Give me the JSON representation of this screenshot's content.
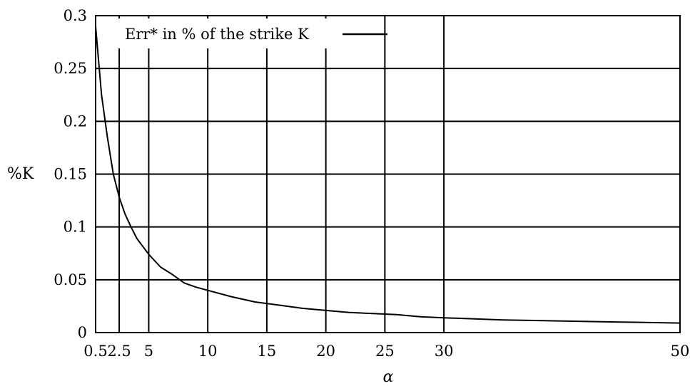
{
  "chart_data": {
    "type": "line",
    "xlabel": "α",
    "ylabel": "%K",
    "xlim": [
      0.5,
      50
    ],
    "ylim": [
      0,
      0.3
    ],
    "x_ticks": [
      {
        "value": 0.5,
        "label": "0.5"
      },
      {
        "value": 2.5,
        "label": "2.5"
      },
      {
        "value": 5,
        "label": "5"
      },
      {
        "value": 10,
        "label": "10"
      },
      {
        "value": 15,
        "label": "15"
      },
      {
        "value": 20,
        "label": "20"
      },
      {
        "value": 25,
        "label": "25"
      },
      {
        "value": 30,
        "label": "30"
      },
      {
        "value": 50,
        "label": "50"
      }
    ],
    "y_ticks": [
      {
        "value": 0,
        "label": "0"
      },
      {
        "value": 0.05,
        "label": "0.05"
      },
      {
        "value": 0.1,
        "label": "0.1"
      },
      {
        "value": 0.15,
        "label": "0.15"
      },
      {
        "value": 0.2,
        "label": "0.2"
      },
      {
        "value": 0.25,
        "label": "0.25"
      },
      {
        "value": 0.3,
        "label": "0.3"
      }
    ],
    "grid": true,
    "legend": "top-left",
    "series": [
      {
        "name": "Err* in % of the strike K",
        "color": "#000000",
        "x": [
          0.5,
          1,
          1.5,
          2,
          2.5,
          3,
          3.5,
          4,
          5,
          6,
          7,
          8,
          9,
          10,
          12,
          14,
          16,
          18,
          20,
          22,
          24,
          26,
          28,
          30,
          35,
          40,
          45,
          50
        ],
        "y": [
          0.29,
          0.225,
          0.185,
          0.15,
          0.128,
          0.112,
          0.1,
          0.089,
          0.074,
          0.062,
          0.055,
          0.047,
          0.043,
          0.04,
          0.034,
          0.029,
          0.026,
          0.023,
          0.021,
          0.019,
          0.018,
          0.017,
          0.015,
          0.014,
          0.012,
          0.011,
          0.01,
          0.009
        ]
      }
    ]
  }
}
